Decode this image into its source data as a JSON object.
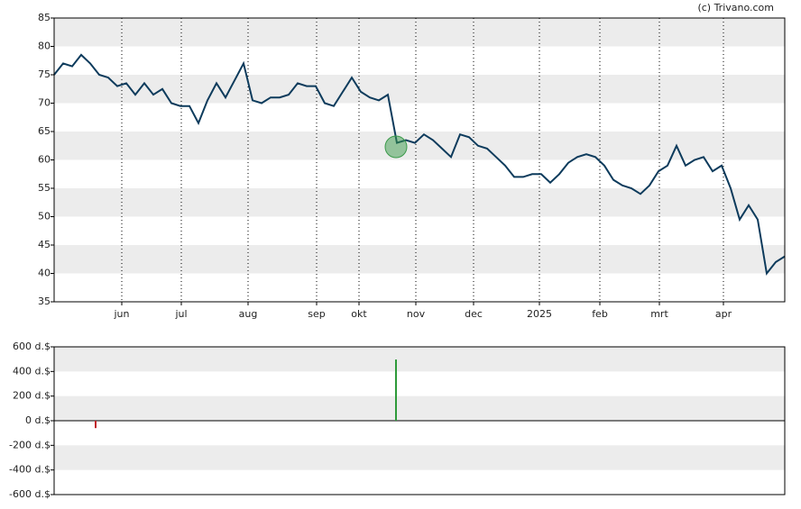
{
  "credit": "(c) Trivano.com",
  "chart_data": [
    {
      "type": "line",
      "series": [
        {
          "color": "#0d3b5c",
          "values": [
            75,
            77,
            76.5,
            78.5,
            77,
            75,
            74.5,
            73,
            73.5,
            71.5,
            73.5,
            71.5,
            72.5,
            70,
            69.5,
            69.5,
            66.5,
            70.5,
            73.5,
            71,
            74,
            77,
            70.5,
            70,
            71,
            71,
            71.5,
            73.5,
            73,
            73,
            70,
            69.5,
            72,
            74.5,
            72,
            71,
            70.5,
            71.5,
            63,
            63.5,
            63,
            64.5,
            63.5,
            62,
            60.5,
            64.5,
            64,
            62.5,
            62,
            60.5,
            59,
            57,
            57,
            57.5,
            57.5,
            56,
            57.5,
            59.5,
            60.5,
            61,
            60.5,
            59,
            56.5,
            55.5,
            55,
            54,
            55.5,
            58,
            59,
            62.5,
            59,
            60,
            60.5,
            58,
            59,
            55,
            49.5,
            52,
            49.5,
            40,
            42,
            43
          ]
        }
      ],
      "marker": {
        "x": 37.9,
        "value": 62.3,
        "color": "#3a9a4a"
      },
      "xlim": [
        0,
        81
      ],
      "xticks": [
        {
          "value": 7.5,
          "label": "jun"
        },
        {
          "value": 14.1,
          "label": "jul"
        },
        {
          "value": 21.5,
          "label": "aug"
        },
        {
          "value": 29.1,
          "label": "sep"
        },
        {
          "value": 33.8,
          "label": "okt"
        },
        {
          "value": 40.1,
          "label": "nov"
        },
        {
          "value": 46.5,
          "label": "dec"
        },
        {
          "value": 53.8,
          "label": "2025"
        },
        {
          "value": 60.5,
          "label": "feb"
        },
        {
          "value": 67.1,
          "label": "mrt"
        },
        {
          "value": 74.2,
          "label": "apr"
        }
      ],
      "ylim": [
        35,
        85
      ],
      "yticks": [
        35,
        40,
        45,
        50,
        55,
        60,
        65,
        70,
        75,
        80,
        85
      ],
      "grid": true
    },
    {
      "type": "bar",
      "x": [
        4.6,
        37.9
      ],
      "values": [
        -60,
        497
      ],
      "colors": [
        "#c0202a",
        "#2e9a3a"
      ],
      "xlim": [
        0,
        81
      ],
      "ylim": [
        -600,
        600
      ],
      "yticks": [
        {
          "value": -600,
          "label": "-600 d.$"
        },
        {
          "value": -400,
          "label": "-400 d.$"
        },
        {
          "value": -200,
          "label": "-200 d.$"
        },
        {
          "value": 0,
          "label": "0 d.$"
        },
        {
          "value": 200,
          "label": "200 d.$"
        },
        {
          "value": 400,
          "label": "400 d.$"
        },
        {
          "value": 600,
          "label": "600 d.$"
        }
      ],
      "grid": true
    }
  ]
}
